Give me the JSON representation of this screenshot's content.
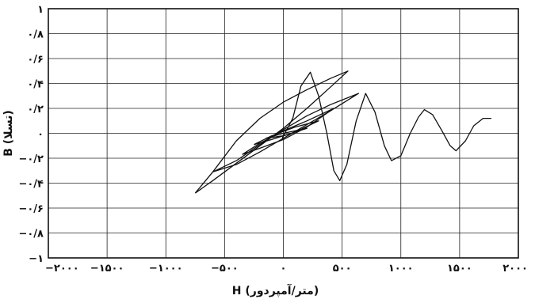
{
  "chart_data": {
    "type": "line",
    "title": "",
    "xlabel": "H (متر/آمپردور)",
    "ylabel": "B (تسلا)",
    "xlim": [
      -2000,
      2000
    ],
    "ylim": [
      -1,
      1
    ],
    "grid": true,
    "x_ticks": [
      -2000,
      -1500,
      -1000,
      -500,
      0,
      500,
      1000,
      1500,
      2000
    ],
    "x_tick_labels": [
      "−۲۰۰۰",
      "−۱۵۰۰",
      "−۱۰۰۰",
      "−۵۰۰",
      "۰",
      "۵۰۰",
      "۱۰۰۰",
      "۱۵۰۰",
      "۲۰۰۰"
    ],
    "y_ticks": [
      1,
      0.8,
      0.6,
      0.4,
      0.2,
      0,
      -0.2,
      -0.4,
      -0.6,
      -0.8,
      -1
    ],
    "y_tick_labels": [
      "۱",
      "۰/۸",
      "۰/۶",
      "۰/۴",
      "۰/۲",
      "۰",
      "−۰/۲",
      "−۰/۴",
      "−۰/۶",
      "−۰/۸",
      "−۱"
    ],
    "series": [
      {
        "values": [
          [
            -750,
            -0.48
          ],
          [
            -600,
            -0.31
          ],
          [
            -400,
            -0.06
          ],
          [
            -200,
            0.12
          ],
          [
            0,
            0.25
          ],
          [
            200,
            0.35
          ],
          [
            400,
            0.44
          ],
          [
            550,
            0.5
          ],
          [
            550,
            0.5
          ],
          [
            400,
            0.37
          ],
          [
            200,
            0.2
          ],
          [
            0,
            0.04
          ],
          [
            -200,
            -0.1
          ],
          [
            -400,
            -0.24
          ],
          [
            -600,
            -0.38
          ],
          [
            -750,
            -0.48
          ]
        ]
      },
      {
        "values": [
          [
            -600,
            -0.31
          ],
          [
            -400,
            -0.22
          ],
          [
            -200,
            -0.09
          ],
          [
            0,
            0.03
          ],
          [
            200,
            0.14
          ],
          [
            400,
            0.23
          ],
          [
            640,
            0.32
          ],
          [
            640,
            0.32
          ],
          [
            400,
            0.18
          ],
          [
            200,
            0.07
          ],
          [
            0,
            -0.04
          ],
          [
            -200,
            -0.15
          ],
          [
            -400,
            -0.25
          ],
          [
            -600,
            -0.31
          ]
        ]
      },
      {
        "values": [
          [
            -350,
            -0.17
          ],
          [
            -200,
            -0.08
          ],
          [
            0,
            0.02
          ],
          [
            200,
            0.1
          ],
          [
            430,
            0.2
          ],
          [
            430,
            0.2
          ],
          [
            200,
            0.05
          ],
          [
            0,
            -0.05
          ],
          [
            -200,
            -0.12
          ],
          [
            -350,
            -0.17
          ]
        ]
      },
      {
        "values": [
          [
            -250,
            -0.09
          ],
          [
            -100,
            -0.02
          ],
          [
            100,
            0.05
          ],
          [
            300,
            0.1
          ],
          [
            300,
            0.1
          ],
          [
            100,
            0.01
          ],
          [
            -100,
            -0.05
          ],
          [
            -250,
            -0.09
          ]
        ]
      },
      {
        "values": [
          [
            -150,
            -0.04
          ],
          [
            0,
            0.0
          ],
          [
            200,
            0.04
          ],
          [
            200,
            0.04
          ],
          [
            0,
            -0.02
          ],
          [
            -150,
            -0.04
          ]
        ]
      },
      {
        "values": [
          [
            -10,
            -0.04
          ],
          [
            80,
            0.12
          ],
          [
            150,
            0.38
          ],
          [
            230,
            0.49
          ],
          [
            300,
            0.3
          ],
          [
            370,
            0.0
          ],
          [
            430,
            -0.3
          ],
          [
            480,
            -0.38
          ],
          [
            540,
            -0.25
          ],
          [
            620,
            0.1
          ],
          [
            700,
            0.32
          ],
          [
            780,
            0.17
          ],
          [
            860,
            -0.1
          ],
          [
            920,
            -0.22
          ],
          [
            1000,
            -0.18
          ],
          [
            1080,
            0.0
          ],
          [
            1150,
            0.13
          ],
          [
            1200,
            0.19
          ],
          [
            1270,
            0.15
          ],
          [
            1350,
            0.02
          ],
          [
            1420,
            -0.1
          ],
          [
            1470,
            -0.14
          ],
          [
            1550,
            -0.06
          ],
          [
            1620,
            0.06
          ],
          [
            1700,
            0.12
          ],
          [
            1770,
            0.12
          ]
        ]
      }
    ]
  }
}
